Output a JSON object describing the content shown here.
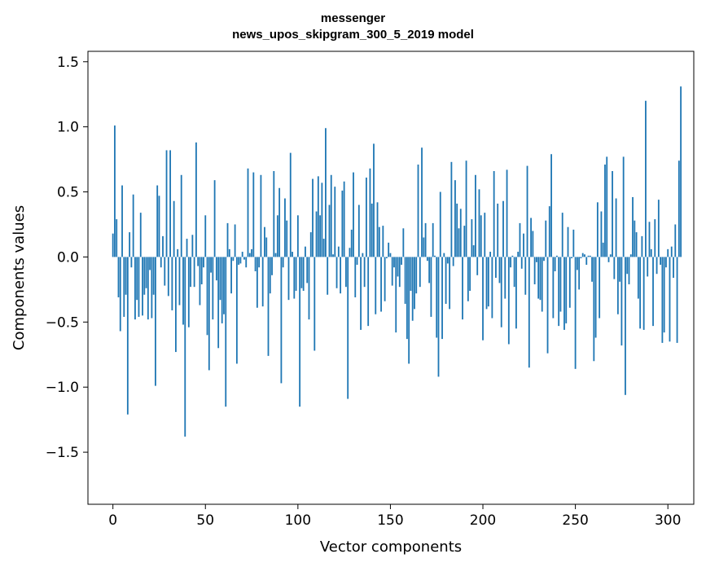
{
  "chart_data": {
    "type": "bar",
    "title_line1": "messenger",
    "title_line2": "news_upos_skipgram_300_5_2019 model",
    "xlabel": "Vector components",
    "ylabel": "Components values",
    "xlim": [
      -13.5,
      314
    ],
    "ylim": [
      -1.9,
      1.58
    ],
    "xticks": [
      0,
      50,
      100,
      150,
      200,
      250,
      300
    ],
    "yticks": [
      -1.5,
      -1.0,
      -0.5,
      0.0,
      0.5,
      1.0,
      1.5
    ],
    "xtick_labels": [
      "0",
      "50",
      "100",
      "150",
      "200",
      "250",
      "300"
    ],
    "ytick_labels": [
      "−1.5",
      "−1.0",
      "−0.5",
      "0.0",
      "0.5",
      "1.0",
      "1.5"
    ],
    "bar_color": "#1f77b4",
    "values": [
      0.18,
      1.01,
      0.29,
      -0.31,
      -0.57,
      0.55,
      -0.46,
      -0.29,
      -1.21,
      0.19,
      -0.08,
      0.48,
      -0.48,
      -0.33,
      -0.46,
      0.34,
      -0.45,
      -0.29,
      -0.24,
      -0.48,
      -0.1,
      -0.47,
      -0.29,
      -0.99,
      0.55,
      0.47,
      -0.08,
      0.16,
      -0.22,
      0.82,
      -0.3,
      0.82,
      -0.41,
      0.43,
      -0.73,
      0.06,
      -0.37,
      0.63,
      -0.52,
      -1.38,
      0.14,
      -0.54,
      -0.23,
      0.17,
      -0.23,
      0.88,
      -0.07,
      -0.37,
      -0.21,
      -0.08,
      0.32,
      -0.6,
      -0.87,
      -0.12,
      -0.48,
      0.59,
      -0.18,
      -0.7,
      -0.33,
      -0.51,
      -0.44,
      -1.15,
      0.26,
      0.06,
      -0.28,
      -0.03,
      0.25,
      -0.82,
      -0.06,
      -0.05,
      0.04,
      -0.02,
      -0.08,
      0.68,
      0.03,
      0.06,
      0.65,
      -0.11,
      -0.39,
      -0.08,
      0.63,
      -0.38,
      0.23,
      0.15,
      -0.76,
      -0.28,
      -0.14,
      0.66,
      0.03,
      0.32,
      0.53,
      -0.97,
      -0.08,
      0.45,
      0.28,
      -0.33,
      0.8,
      0.04,
      -0.32,
      -0.26,
      0.32,
      -1.15,
      -0.24,
      -0.26,
      0.08,
      -0.2,
      -0.48,
      0.19,
      0.6,
      -0.72,
      0.35,
      0.62,
      0.32,
      0.57,
      0.14,
      0.99,
      -0.29,
      0.4,
      0.63,
      0.02,
      0.54,
      -0.24,
      0.08,
      -0.28,
      0.51,
      0.58,
      -0.23,
      -1.09,
      0.07,
      0.21,
      0.65,
      -0.31,
      -0.06,
      0.4,
      -0.56,
      0.03,
      -0.23,
      0.61,
      -0.53,
      0.68,
      0.41,
      0.87,
      -0.44,
      0.42,
      0.23,
      -0.42,
      0.24,
      -0.34,
      -0.01,
      0.11,
      0.03,
      -0.22,
      -0.08,
      -0.58,
      -0.15,
      -0.23,
      -0.06,
      0.22,
      -0.36,
      -0.63,
      -0.82,
      -0.26,
      -0.49,
      -0.4,
      -0.28,
      0.71,
      -0.23,
      0.84,
      0.15,
      0.26,
      -0.03,
      -0.2,
      -0.46,
      0.26,
      0.01,
      -0.62,
      -0.92,
      0.5,
      -0.63,
      0.03,
      -0.36,
      -0.05,
      -0.4,
      0.73,
      -0.07,
      0.59,
      0.41,
      0.22,
      0.37,
      -0.48,
      0.24,
      0.74,
      -0.34,
      -0.26,
      0.29,
      0.09,
      0.63,
      -0.14,
      0.52,
      0.32,
      -0.64,
      0.34,
      -0.4,
      -0.38,
      0.04,
      -0.47,
      0.66,
      -0.16,
      0.41,
      -0.2,
      -0.54,
      0.43,
      -0.32,
      0.67,
      -0.67,
      -0.08,
      0.01,
      -0.23,
      -0.55,
      0.04,
      0.26,
      -0.09,
      0.18,
      -0.29,
      0.7,
      -0.85,
      0.3,
      0.2,
      -0.21,
      -0.04,
      -0.32,
      -0.33,
      -0.42,
      -0.03,
      0.28,
      -0.74,
      0.39,
      0.79,
      -0.47,
      -0.11,
      0.01,
      -0.53,
      -0.42,
      0.34,
      -0.56,
      -0.51,
      0.23,
      -0.39,
      -0.01,
      0.21,
      -0.86,
      -0.1,
      -0.25,
      -0.01,
      0.03,
      0.02,
      -0.06,
      0.01,
      0.01,
      -0.19,
      -0.8,
      -0.62,
      0.42,
      -0.47,
      0.35,
      0.11,
      0.71,
      0.77,
      -0.04,
      0.02,
      0.66,
      -0.17,
      0.45,
      -0.44,
      -0.19,
      -0.68,
      0.77,
      -1.06,
      -0.13,
      -0.21,
      0.02,
      0.46,
      0.28,
      0.19,
      -0.32,
      -0.55,
      0.16,
      -0.56,
      1.2,
      -0.15,
      0.27,
      0.06,
      -0.53,
      0.29,
      -0.13,
      0.44,
      -0.06,
      -0.66,
      -0.58,
      -0.08,
      0.06,
      -0.65,
      0.08,
      -0.16,
      0.25,
      -0.66,
      0.74,
      1.31
    ],
    "highlight_indices": [
      201,
      225,
      242,
      236,
      178,
      257,
      250,
      209,
      236
    ]
  }
}
